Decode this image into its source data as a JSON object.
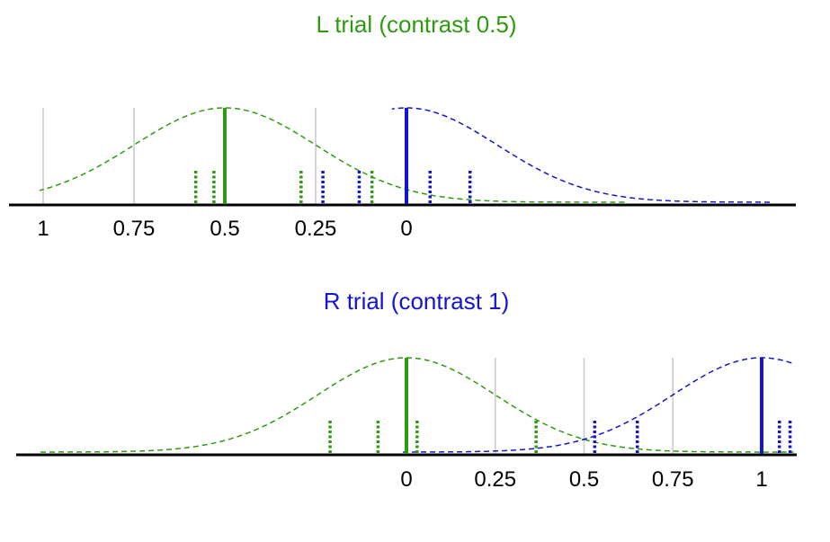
{
  "colors": {
    "left": "#2e9a10",
    "right": "#1414d2",
    "axis": "#000000",
    "reference": "#c8c8c8"
  },
  "panels": [
    {
      "title": "L trial (contrast 0.5)",
      "title_color": "left",
      "axis_direction": "reversed",
      "tick_labels": [
        "1",
        "0.75",
        "0.5",
        "0.25",
        "0"
      ],
      "tick_values": [
        1,
        0.75,
        0.5,
        0.25,
        0
      ],
      "reference_lines": [
        1,
        0.75,
        0.5,
        0.25
      ],
      "curves": [
        {
          "color": "left",
          "mean": 0.5,
          "sd": 0.25
        },
        {
          "color": "right",
          "mean": 0,
          "sd": 0.25
        }
      ],
      "means": [
        {
          "color": "left",
          "value": 0.5
        },
        {
          "color": "right",
          "value": 0
        }
      ],
      "samples": [
        {
          "color": "left",
          "value": 0.58
        },
        {
          "color": "left",
          "value": 0.53
        },
        {
          "color": "left",
          "value": 0.29
        },
        {
          "color": "right",
          "value": 0.23
        },
        {
          "color": "right",
          "value": 0.13
        },
        {
          "color": "left",
          "value": 0.095
        },
        {
          "color": "right",
          "value": -0.065
        },
        {
          "color": "right",
          "value": -0.175
        }
      ]
    },
    {
      "title": "R trial (contrast 1)",
      "title_color": "right",
      "axis_direction": "normal",
      "tick_labels": [
        "0",
        "0.25",
        "0.5",
        "0.75",
        "1"
      ],
      "tick_values": [
        0,
        0.25,
        0.5,
        0.75,
        1
      ],
      "reference_lines": [
        0.25,
        0.5,
        0.75
      ],
      "curves": [
        {
          "color": "left",
          "mean": 0,
          "sd": 0.25
        },
        {
          "color": "right",
          "mean": 1,
          "sd": 0.25
        }
      ],
      "means": [
        {
          "color": "left",
          "value": 0
        },
        {
          "color": "right",
          "value": 1
        }
      ],
      "samples": [
        {
          "color": "left",
          "value": -0.215
        },
        {
          "color": "left",
          "value": -0.08
        },
        {
          "color": "left",
          "value": 0.03
        },
        {
          "color": "left",
          "value": 0.365
        },
        {
          "color": "right",
          "value": 0.53
        },
        {
          "color": "right",
          "value": 0.65
        },
        {
          "color": "right",
          "value": 1.05
        },
        {
          "color": "right",
          "value": 1.08
        }
      ]
    }
  ]
}
